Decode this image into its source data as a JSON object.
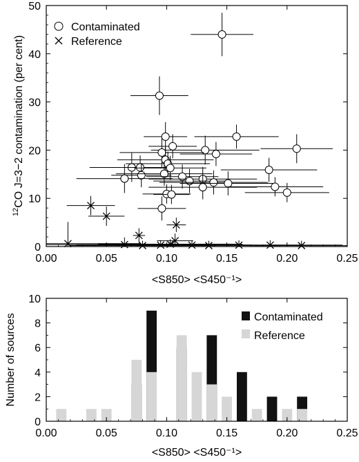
{
  "chart_data": [
    {
      "type": "scatter",
      "ylabel_sup": "12",
      "ylabel": "CO J=3−2 contamination (per cent)",
      "xlabel": "<S850> <S450⁻¹>",
      "xlim": [
        0,
        0.25
      ],
      "ylim": [
        0,
        50
      ],
      "xticks": [
        "0.00",
        "0.05",
        "0.10",
        "0.15",
        "0.20",
        "0.25"
      ],
      "yticks": [
        "0",
        "10",
        "20",
        "30",
        "40",
        "50"
      ],
      "legend": {
        "position": "top-left",
        "contaminated_label": "Contaminated",
        "reference_label": "Reference"
      },
      "series": [
        {
          "name": "Contaminated",
          "marker": "circle",
          "points": [
            {
              "x": 0.146,
              "y": 44.0,
              "xerr": 0.026,
              "yerr": 4.5
            },
            {
              "x": 0.094,
              "y": 31.3,
              "xerr": 0.024,
              "yerr": 4.0
            },
            {
              "x": 0.099,
              "y": 22.8,
              "xerr": 0.018,
              "yerr": 3.0
            },
            {
              "x": 0.158,
              "y": 22.8,
              "xerr": 0.035,
              "yerr": 2.5
            },
            {
              "x": 0.208,
              "y": 20.3,
              "xerr": 0.03,
              "yerr": 3.0
            },
            {
              "x": 0.105,
              "y": 20.8,
              "xerr": 0.02,
              "yerr": 2.5
            },
            {
              "x": 0.132,
              "y": 20.0,
              "xerr": 0.045,
              "yerr": 3.0
            },
            {
              "x": 0.096,
              "y": 19.5,
              "xerr": 0.035,
              "yerr": 3.0
            },
            {
              "x": 0.141,
              "y": 19.2,
              "xerr": 0.03,
              "yerr": 2.5
            },
            {
              "x": 0.099,
              "y": 18.0,
              "xerr": 0.04,
              "yerr": 2.5
            },
            {
              "x": 0.101,
              "y": 17.2,
              "xerr": 0.035,
              "yerr": 2.5
            },
            {
              "x": 0.071,
              "y": 16.4,
              "xerr": 0.035,
              "yerr": 3.0
            },
            {
              "x": 0.078,
              "y": 16.4,
              "xerr": 0.02,
              "yerr": 2.5
            },
            {
              "x": 0.103,
              "y": 16.3,
              "xerr": 0.03,
              "yerr": 2.5
            },
            {
              "x": 0.185,
              "y": 15.9,
              "xerr": 0.04,
              "yerr": 2.5
            },
            {
              "x": 0.079,
              "y": 14.8,
              "xerr": 0.025,
              "yerr": 2.5
            },
            {
              "x": 0.098,
              "y": 15.1,
              "xerr": 0.04,
              "yerr": 2.5
            },
            {
              "x": 0.113,
              "y": 14.5,
              "xerr": 0.03,
              "yerr": 2.5
            },
            {
              "x": 0.065,
              "y": 14.1,
              "xerr": 0.04,
              "yerr": 3.0
            },
            {
              "x": 0.13,
              "y": 14.0,
              "xerr": 0.045,
              "yerr": 2.5
            },
            {
              "x": 0.119,
              "y": 13.6,
              "xerr": 0.03,
              "yerr": 2.5
            },
            {
              "x": 0.139,
              "y": 13.3,
              "xerr": 0.045,
              "yerr": 2.5
            },
            {
              "x": 0.151,
              "y": 13.1,
              "xerr": 0.04,
              "yerr": 2.5
            },
            {
              "x": 0.13,
              "y": 12.3,
              "xerr": 0.045,
              "yerr": 2.5
            },
            {
              "x": 0.19,
              "y": 12.4,
              "xerr": 0.04,
              "yerr": 2.0
            },
            {
              "x": 0.2,
              "y": 11.2,
              "xerr": 0.035,
              "yerr": 2.0
            },
            {
              "x": 0.1,
              "y": 10.9,
              "xerr": 0.02,
              "yerr": 2.0
            },
            {
              "x": 0.104,
              "y": 10.8,
              "xerr": 0.015,
              "yerr": 2.0
            },
            {
              "x": 0.096,
              "y": 7.9,
              "xerr": 0.02,
              "yerr": 2.5
            }
          ]
        },
        {
          "name": "Reference",
          "marker": "cross",
          "points": [
            {
              "x": 0.037,
              "y": 8.5,
              "xerr": 0.02,
              "yerr": 2.0
            },
            {
              "x": 0.05,
              "y": 6.3,
              "xerr": 0.015,
              "yerr": 2.0
            },
            {
              "x": 0.108,
              "y": 4.5,
              "xerr": 0.008,
              "yerr": 1.5
            },
            {
              "x": 0.077,
              "y": 2.3,
              "xerr": 0.005,
              "yerr": 1.5
            },
            {
              "x": 0.107,
              "y": 1.2,
              "xerr": 0.015,
              "yerr": 1.5
            },
            {
              "x": 0.018,
              "y": 0.6,
              "xerr": 0.06,
              "yerr": 4.5
            },
            {
              "x": 0.065,
              "y": 0.4,
              "xerr": 0.07,
              "yerr": 1.5
            },
            {
              "x": 0.08,
              "y": 0.2,
              "xerr": 0.06,
              "yerr": 1.0
            },
            {
              "x": 0.095,
              "y": 0.3,
              "xerr": 0.07,
              "yerr": 1.0
            },
            {
              "x": 0.103,
              "y": 0.5,
              "xerr": 0.06,
              "yerr": 1.0
            },
            {
              "x": 0.121,
              "y": 0.3,
              "xerr": 0.05,
              "yerr": 1.0
            },
            {
              "x": 0.135,
              "y": 0.2,
              "xerr": 0.06,
              "yerr": 1.0
            },
            {
              "x": 0.16,
              "y": 0.3,
              "xerr": 0.05,
              "yerr": 1.0
            },
            {
              "x": 0.186,
              "y": 0.3,
              "xerr": 0.06,
              "yerr": 1.0
            },
            {
              "x": 0.212,
              "y": 0.2,
              "xerr": 0.04,
              "yerr": 1.0
            }
          ]
        }
      ]
    },
    {
      "type": "bar",
      "ylabel": "Number of sources",
      "xlabel": "<S850> <S450⁻¹>",
      "xlim": [
        0,
        0.25
      ],
      "ylim": [
        0,
        10
      ],
      "xticks": [
        "0.00",
        "0.05",
        "0.10",
        "0.15",
        "0.20",
        "0.25"
      ],
      "yticks": [
        "0",
        "2",
        "4",
        "6",
        "8",
        "10"
      ],
      "bin_width": 0.0125,
      "legend": {
        "position": "top-right"
      },
      "colors": {
        "Contaminated": "#111111",
        "Reference": "#d6d6d6"
      },
      "series": [
        {
          "name": "Contaminated",
          "x": [
            0.0625,
            0.075,
            0.0875,
            0.1,
            0.1125,
            0.125,
            0.1375,
            0.15,
            0.1625,
            0.175,
            0.1875,
            0.2,
            0.2125
          ],
          "values": [
            0,
            3,
            9,
            0,
            6,
            0,
            7,
            0,
            4,
            0,
            2,
            0,
            2
          ]
        },
        {
          "name": "Reference",
          "x": [
            0.0125,
            0.0375,
            0.05,
            0.0625,
            0.075,
            0.0875,
            0.1,
            0.1125,
            0.125,
            0.1375,
            0.15,
            0.1625,
            0.175,
            0.2,
            0.2125
          ],
          "values": [
            1,
            1,
            1,
            0,
            5,
            4,
            0,
            7,
            4,
            3,
            2,
            0,
            1,
            1,
            1
          ]
        }
      ]
    }
  ]
}
